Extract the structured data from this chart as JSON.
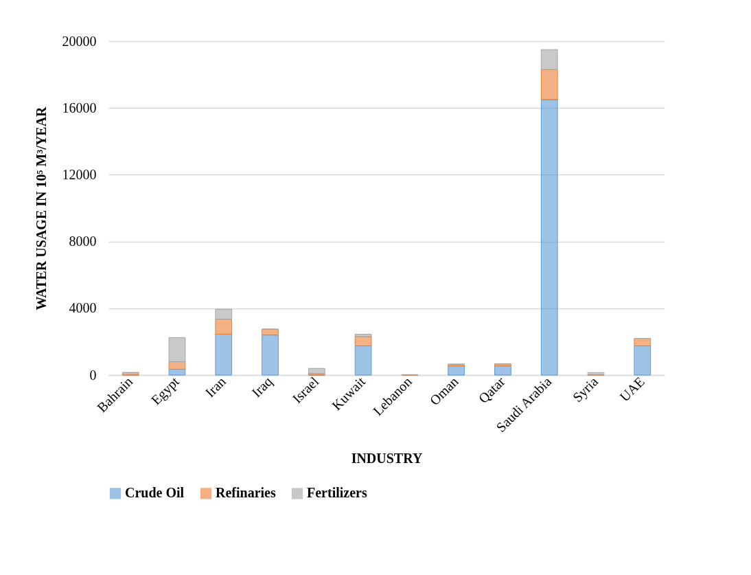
{
  "chart_data": {
    "type": "bar",
    "stacked": true,
    "xlabel": "INDUSTRY",
    "ylabel": "WATER USAGE IN 10⁵ M³/YEAR",
    "categories": [
      "Bahrain",
      "Egypt",
      "Iran",
      "Iraq",
      "Israel",
      "Kuwait",
      "Lebanon",
      "Oman",
      "Qatar",
      "Saudi Arabia",
      "Syria",
      "UAE"
    ],
    "series": [
      {
        "name": "Crude Oil",
        "color": "#5b9bd5",
        "values": [
          0,
          350,
          2450,
          2400,
          0,
          1750,
          0,
          550,
          550,
          16500,
          0,
          1750
        ]
      },
      {
        "name": "Refinaries",
        "color": "#ed7d31",
        "values": [
          150,
          450,
          900,
          350,
          100,
          550,
          0,
          100,
          120,
          1800,
          0,
          450
        ]
      },
      {
        "name": "Fertilizers",
        "color": "#a5a5a5",
        "values": [
          0,
          1450,
          600,
          0,
          300,
          150,
          30,
          0,
          0,
          1200,
          150,
          0
        ]
      }
    ],
    "ylim": [
      0,
      20000
    ],
    "yticks": [
      0,
      4000,
      8000,
      12000,
      16000,
      20000
    ],
    "grid": "y",
    "legend": "bottom"
  }
}
